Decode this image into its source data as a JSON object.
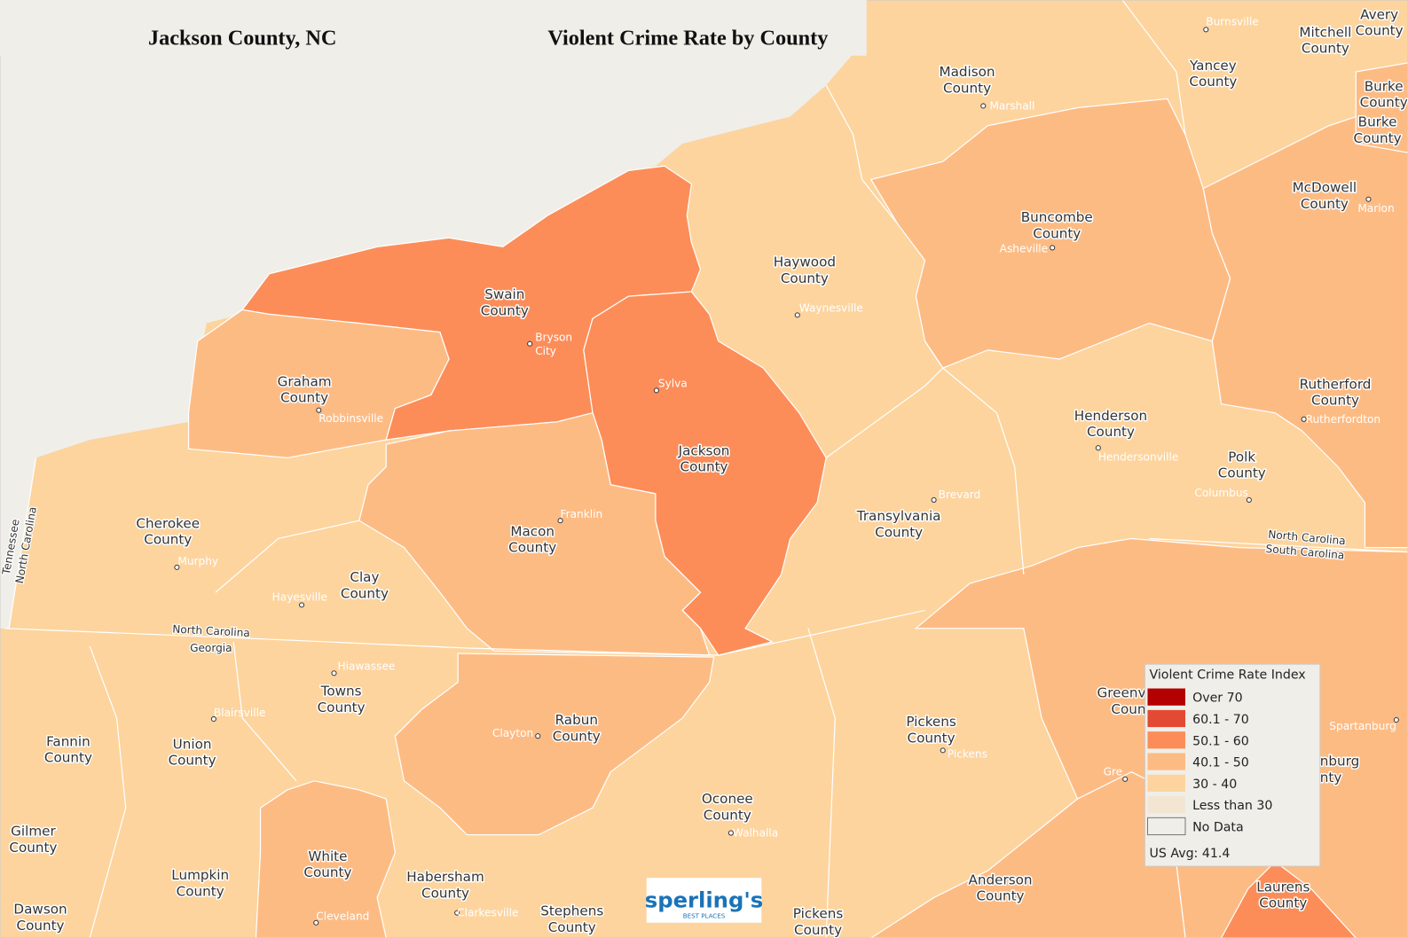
{
  "header": {
    "title": "Jackson County, NC",
    "subtitle": "Violent Crime Rate by County"
  },
  "legend": {
    "title": "Violent Crime Rate Index",
    "items": [
      {
        "label": "Over 70",
        "color": "#b30000"
      },
      {
        "label": "60.1 - 70",
        "color": "#e34a33"
      },
      {
        "label": "50.1 - 60",
        "color": "#fc8d59"
      },
      {
        "label": "40.1 - 50",
        "color": "#fdbb84"
      },
      {
        "label": "30 - 40",
        "color": "#fdd49e"
      },
      {
        "label": "Less than 30",
        "color": "#f2e6d3"
      },
      {
        "label": "No Data",
        "color": "#f0eee9"
      }
    ],
    "note": "US Avg: 41.4"
  },
  "counties": [
    [
      "Madison",
      "County"
    ],
    [
      "Yancey",
      "County"
    ],
    [
      "Mitchell",
      "County"
    ],
    [
      "Avery",
      "County"
    ],
    [
      "Burke",
      "County"
    ],
    [
      "Burke",
      "County"
    ],
    [
      "McDowell",
      "County"
    ],
    [
      "Buncombe",
      "County"
    ],
    [
      "Haywood",
      "County"
    ],
    [
      "Swain",
      "County"
    ],
    [
      "Graham",
      "County"
    ],
    [
      "Jackson",
      "County"
    ],
    [
      "Macon",
      "County"
    ],
    [
      "Cherokee",
      "County"
    ],
    [
      "Clay",
      "County"
    ],
    [
      "Transylvania",
      "County"
    ],
    [
      "Henderson",
      "County"
    ],
    [
      "Rutherford",
      "County"
    ],
    [
      "Polk",
      "County"
    ],
    [
      "Towns",
      "County"
    ],
    [
      "Union",
      "County"
    ],
    [
      "Fannin",
      "County"
    ],
    [
      "Gilmer",
      "County"
    ],
    [
      "Rabun",
      "County"
    ],
    [
      "Oconee",
      "County"
    ],
    [
      "Pickens",
      "County"
    ],
    [
      "White",
      "County"
    ],
    [
      "Lumpkin",
      "County"
    ],
    [
      "Dawson",
      "County"
    ],
    [
      "Habersham",
      "County"
    ],
    [
      "Stephens",
      "County"
    ],
    [
      "Pickens",
      "County"
    ],
    [
      "Anderson",
      "County"
    ],
    [
      "Laurens",
      "County"
    ],
    [
      "Greenv",
      "Coun"
    ],
    [
      "nburg",
      "nty"
    ]
  ],
  "cities": [
    [
      "Burnsville"
    ],
    [
      "Marshall"
    ],
    [
      "Asheville"
    ],
    [
      "Marion"
    ],
    [
      "Waynesville"
    ],
    [
      "Bryson",
      "City"
    ],
    [
      "Sylva"
    ],
    [
      "Robbinsville"
    ],
    [
      "Franklin"
    ],
    [
      "Murphy"
    ],
    [
      "Hayesville"
    ],
    [
      "Brevard"
    ],
    [
      "Hendersonville"
    ],
    [
      "Rutherfordton"
    ],
    [
      "Columbus"
    ],
    [
      "Hiawassee"
    ],
    [
      "Blairsville"
    ],
    [
      "Clayton"
    ],
    [
      "Pickens"
    ],
    [
      "Walhalla"
    ],
    [
      "Cleveland"
    ],
    [
      "Clarkesville"
    ],
    [
      "Spartanburg"
    ],
    [
      "Gre"
    ]
  ],
  "state_labels": [
    "Tennessee",
    "North Carolina",
    "North Carolina",
    "Georgia",
    "North Carolina",
    "South Carolina"
  ],
  "logo": {
    "name": "sperling's",
    "tagline": "BEST PLACES"
  }
}
